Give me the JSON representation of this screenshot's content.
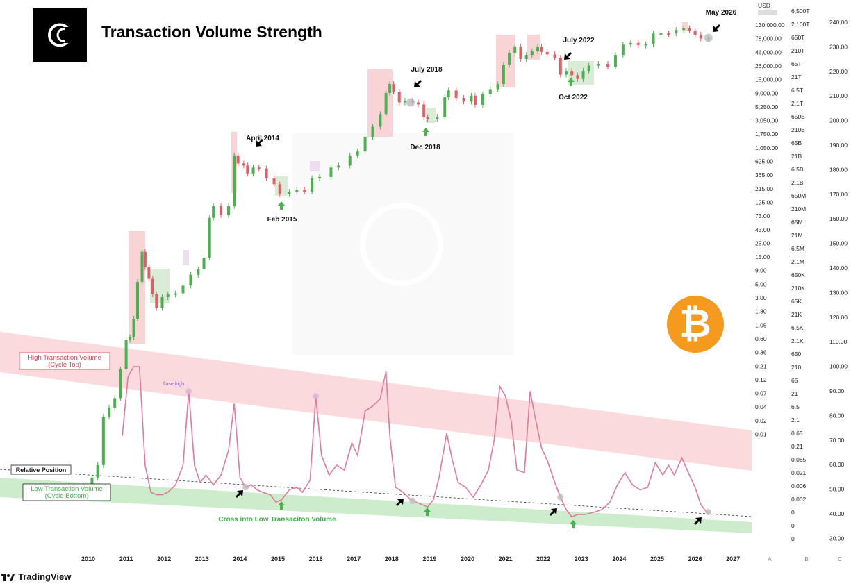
{
  "header": {
    "title": "Transaction Volume Strength"
  },
  "footer": {
    "brand": "TradingView"
  },
  "icons": {
    "logo": "cryptoquant-c-logo-icon",
    "bitcoin": "bitcoin-icon",
    "tradingview": "tradingview-icon"
  },
  "colors": {
    "candle_up": "#4caf50",
    "candle_down": "#e05c66",
    "indicator_line": "#e07a9a",
    "top_band": "#fadadd",
    "bottom_band": "#cdeccc",
    "bitcoin": "#f39a1f",
    "annotation_green": "#4caf50",
    "top_label": "#d9434f",
    "bottom_label": "#3fae49"
  },
  "chart_data": {
    "type": "line",
    "title": "Transaction Volume Strength",
    "x_ticks": [
      "2010",
      "2011",
      "2012",
      "2013",
      "2014",
      "2015",
      "2016",
      "2017",
      "2018",
      "2019",
      "2020",
      "2021",
      "2022",
      "2023",
      "2024",
      "2025",
      "2026",
      "2027"
    ],
    "price_axis": {
      "unit_label": "USD",
      "ticks": [
        "130,000.00",
        "78,000.00",
        "46,000.00",
        "26,000.00",
        "15,000.00",
        "9,000.00",
        "5,250.00",
        "3,050.00",
        "1,750.00",
        "1,050.00",
        "625.00",
        "365.00",
        "215.00",
        "125.00",
        "73.00",
        "43.00",
        "25.00",
        "15.00",
        "9.00",
        "5.00",
        "3.00",
        "1.80",
        "1.05",
        "0.60",
        "0.36",
        "0.21",
        "0.12",
        "0.07",
        "0.04",
        "0.02",
        "0.01"
      ],
      "scale": "log"
    },
    "axis_b": [
      "6,500T",
      "2,100T",
      "650T",
      "210T",
      "65T",
      "21T",
      "6.5T",
      "2.1T",
      "650B",
      "210B",
      "65B",
      "21B",
      "6.5B",
      "2.1B",
      "650M",
      "210M",
      "65M",
      "21M",
      "6.5M",
      "2.1M",
      "650K",
      "210K",
      "65K",
      "21K",
      "6.5K",
      "2.1K",
      "650",
      "210",
      "65",
      "21",
      "6.5",
      "2.1",
      "0.65",
      "0.21",
      "0.065",
      "0.021",
      "0.006",
      "0.002",
      "0",
      "0",
      "0"
    ],
    "axis_c": [
      "240.00",
      "230.00",
      "220.00",
      "210.00",
      "200.00",
      "190.00",
      "180.00",
      "170.00",
      "160.00",
      "150.00",
      "140.00",
      "130.00",
      "120.00",
      "110.00",
      "100.00",
      "90.00",
      "80.00",
      "70.00",
      "60.00",
      "50.00",
      "40.00",
      "30.00"
    ],
    "axis_footer": [
      "A",
      "B",
      "C"
    ],
    "price_series": {
      "name": "",
      "points": [
        [
          2010.0,
          0.003
        ],
        [
          2010.1,
          0.005
        ],
        [
          2010.25,
          0.008
        ],
        [
          2010.4,
          0.05
        ],
        [
          2010.55,
          0.07
        ],
        [
          2010.7,
          0.1
        ],
        [
          2010.85,
          0.3
        ],
        [
          2011.0,
          0.9
        ],
        [
          2011.1,
          1.0
        ],
        [
          2011.2,
          2.0
        ],
        [
          2011.3,
          8.0
        ],
        [
          2011.42,
          25.0
        ],
        [
          2011.5,
          14.0
        ],
        [
          2011.6,
          9.0
        ],
        [
          2011.7,
          5.0
        ],
        [
          2011.8,
          3.0
        ],
        [
          2011.95,
          4.5
        ],
        [
          2012.1,
          5.0
        ],
        [
          2012.3,
          5.2
        ],
        [
          2012.5,
          7.0
        ],
        [
          2012.7,
          10.5
        ],
        [
          2012.9,
          13.0
        ],
        [
          2013.05,
          20.0
        ],
        [
          2013.2,
          90.0
        ],
        [
          2013.3,
          140.0
        ],
        [
          2013.5,
          100.0
        ],
        [
          2013.7,
          140.0
        ],
        [
          2013.85,
          950.0
        ],
        [
          2013.95,
          700.0
        ],
        [
          2014.1,
          650.0
        ],
        [
          2014.2,
          480.0
        ],
        [
          2014.35,
          600.0
        ],
        [
          2014.5,
          580.0
        ],
        [
          2014.7,
          400.0
        ],
        [
          2014.9,
          320.0
        ],
        [
          2015.05,
          220.0
        ],
        [
          2015.3,
          240.0
        ],
        [
          2015.5,
          260.0
        ],
        [
          2015.7,
          240.0
        ],
        [
          2015.9,
          400.0
        ],
        [
          2016.1,
          420.0
        ],
        [
          2016.4,
          600.0
        ],
        [
          2016.6,
          650.0
        ],
        [
          2016.9,
          950.0
        ],
        [
          2017.1,
          1100.0
        ],
        [
          2017.3,
          1900.0
        ],
        [
          2017.5,
          2800.0
        ],
        [
          2017.7,
          4500.0
        ],
        [
          2017.85,
          10000.0
        ],
        [
          2017.95,
          14000.0
        ],
        [
          2018.05,
          10500.0
        ],
        [
          2018.2,
          7000.0
        ],
        [
          2018.35,
          7500.0
        ],
        [
          2018.55,
          7000.0
        ],
        [
          2018.7,
          6500.0
        ],
        [
          2018.85,
          4000.0
        ],
        [
          2018.95,
          3700.0
        ],
        [
          2019.2,
          4100.0
        ],
        [
          2019.4,
          8500.0
        ],
        [
          2019.5,
          11000.0
        ],
        [
          2019.7,
          8300.0
        ],
        [
          2019.9,
          7200.0
        ],
        [
          2020.1,
          9000.0
        ],
        [
          2020.2,
          6400.0
        ],
        [
          2020.4,
          9500.0
        ],
        [
          2020.6,
          11500.0
        ],
        [
          2020.8,
          14000.0
        ],
        [
          2020.95,
          29000.0
        ],
        [
          2021.1,
          45000.0
        ],
        [
          2021.25,
          58000.0
        ],
        [
          2021.4,
          36000.0
        ],
        [
          2021.55,
          42000.0
        ],
        [
          2021.7,
          48000.0
        ],
        [
          2021.85,
          57000.0
        ],
        [
          2021.95,
          47000.0
        ],
        [
          2022.1,
          43000.0
        ],
        [
          2022.3,
          38000.0
        ],
        [
          2022.45,
          20000.0
        ],
        [
          2022.6,
          23000.0
        ],
        [
          2022.75,
          19500.0
        ],
        [
          2022.9,
          17000.0
        ],
        [
          2023.05,
          23000.0
        ],
        [
          2023.2,
          28000.0
        ],
        [
          2023.45,
          30000.0
        ],
        [
          2023.7,
          27000.0
        ],
        [
          2023.9,
          42000.0
        ],
        [
          2024.1,
          62000.0
        ],
        [
          2024.3,
          66000.0
        ],
        [
          2024.5,
          61000.0
        ],
        [
          2024.7,
          63000.0
        ],
        [
          2024.9,
          94000.0
        ],
        [
          2025.1,
          95000.0
        ],
        [
          2025.3,
          94000.0
        ],
        [
          2025.5,
          108000.0
        ],
        [
          2025.7,
          115000.0
        ],
        [
          2025.85,
          105000.0
        ],
        [
          2026.0,
          90000.0
        ],
        [
          2026.15,
          78000.0
        ],
        [
          2026.35,
          80000.0
        ]
      ]
    },
    "indicator_series": {
      "name": "",
      "points": [
        [
          2010.9,
          72
        ],
        [
          2011.05,
          96
        ],
        [
          2011.2,
          100
        ],
        [
          2011.35,
          100
        ],
        [
          2011.5,
          60
        ],
        [
          2011.65,
          49
        ],
        [
          2011.8,
          48
        ],
        [
          2011.95,
          48
        ],
        [
          2012.1,
          49
        ],
        [
          2012.3,
          52
        ],
        [
          2012.5,
          60
        ],
        [
          2012.65,
          90
        ],
        [
          2012.8,
          60
        ],
        [
          2012.95,
          53
        ],
        [
          2013.1,
          56
        ],
        [
          2013.3,
          52
        ],
        [
          2013.5,
          56
        ],
        [
          2013.7,
          66
        ],
        [
          2013.85,
          85
        ],
        [
          2014.0,
          55
        ],
        [
          2014.15,
          51
        ],
        [
          2014.3,
          52
        ],
        [
          2014.45,
          50
        ],
        [
          2014.6,
          49
        ],
        [
          2014.8,
          48
        ],
        [
          2014.95,
          45
        ],
        [
          2015.1,
          46
        ],
        [
          2015.3,
          50
        ],
        [
          2015.5,
          51
        ],
        [
          2015.65,
          49
        ],
        [
          2015.85,
          54
        ],
        [
          2016.0,
          88
        ],
        [
          2016.15,
          64
        ],
        [
          2016.35,
          56
        ],
        [
          2016.55,
          60
        ],
        [
          2016.75,
          58
        ],
        [
          2016.95,
          69
        ],
        [
          2017.1,
          64
        ],
        [
          2017.3,
          82
        ],
        [
          2017.5,
          84
        ],
        [
          2017.7,
          87
        ],
        [
          2017.85,
          98
        ],
        [
          2017.95,
          72
        ],
        [
          2018.1,
          51
        ],
        [
          2018.3,
          49
        ],
        [
          2018.5,
          46
        ],
        [
          2018.65,
          45
        ],
        [
          2018.8,
          44
        ],
        [
          2018.95,
          43
        ],
        [
          2019.1,
          46
        ],
        [
          2019.25,
          55
        ],
        [
          2019.45,
          73
        ],
        [
          2019.6,
          62
        ],
        [
          2019.75,
          53
        ],
        [
          2019.95,
          51
        ],
        [
          2020.15,
          47
        ],
        [
          2020.35,
          52
        ],
        [
          2020.55,
          58
        ],
        [
          2020.7,
          70
        ],
        [
          2020.85,
          92
        ],
        [
          2021.0,
          88
        ],
        [
          2021.15,
          78
        ],
        [
          2021.3,
          58
        ],
        [
          2021.5,
          57
        ],
        [
          2021.65,
          90
        ],
        [
          2021.8,
          78
        ],
        [
          2021.95,
          67
        ],
        [
          2022.1,
          62
        ],
        [
          2022.3,
          53
        ],
        [
          2022.45,
          47
        ],
        [
          2022.6,
          42
        ],
        [
          2022.75,
          39
        ],
        [
          2022.9,
          40
        ],
        [
          2023.1,
          40
        ],
        [
          2023.35,
          41
        ],
        [
          2023.55,
          42
        ],
        [
          2023.75,
          45
        ],
        [
          2023.95,
          52
        ],
        [
          2024.15,
          57
        ],
        [
          2024.35,
          52
        ],
        [
          2024.55,
          50
        ],
        [
          2024.75,
          51
        ],
        [
          2024.95,
          61
        ],
        [
          2025.15,
          56
        ],
        [
          2025.3,
          60
        ],
        [
          2025.45,
          56
        ],
        [
          2025.65,
          63
        ],
        [
          2025.85,
          56
        ],
        [
          2026.0,
          51
        ],
        [
          2026.15,
          44
        ],
        [
          2026.3,
          41
        ],
        [
          2026.4,
          41
        ]
      ]
    },
    "bands": {
      "high": {
        "label_line1": "High Transaction Volume",
        "label_line2": "(Cycle Top)"
      },
      "low": {
        "label_line1": "Low Transaction Volume",
        "label_line2": "(Cycle Bottom)"
      },
      "relative": {
        "label": "Relative Position"
      }
    },
    "annotations": [
      {
        "text": "April 2014",
        "x": 2014.3,
        "kind": "top",
        "arrow": "black"
      },
      {
        "text": "Feb 2015",
        "x": 2015.1,
        "kind": "bottom",
        "arrow": "green"
      },
      {
        "text": "July 2018",
        "x": 2018.55,
        "kind": "top",
        "arrow": "black"
      },
      {
        "text": "Dec 2018",
        "x": 2018.95,
        "kind": "bottom",
        "arrow": "green"
      },
      {
        "text": "July 2022",
        "x": 2022.55,
        "kind": "top",
        "arrow": "black"
      },
      {
        "text": "Oct 2022",
        "x": 2022.8,
        "kind": "bottom",
        "arrow": "green"
      },
      {
        "text": "May 2026",
        "x": 2026.35,
        "kind": "top",
        "arrow": "black"
      },
      {
        "text": "flase high",
        "x": 2012.65,
        "kind": "note"
      },
      {
        "text": "Cross into Low Transaciton Volume",
        "kind": "caption"
      }
    ],
    "grid": false,
    "legend": "none"
  }
}
